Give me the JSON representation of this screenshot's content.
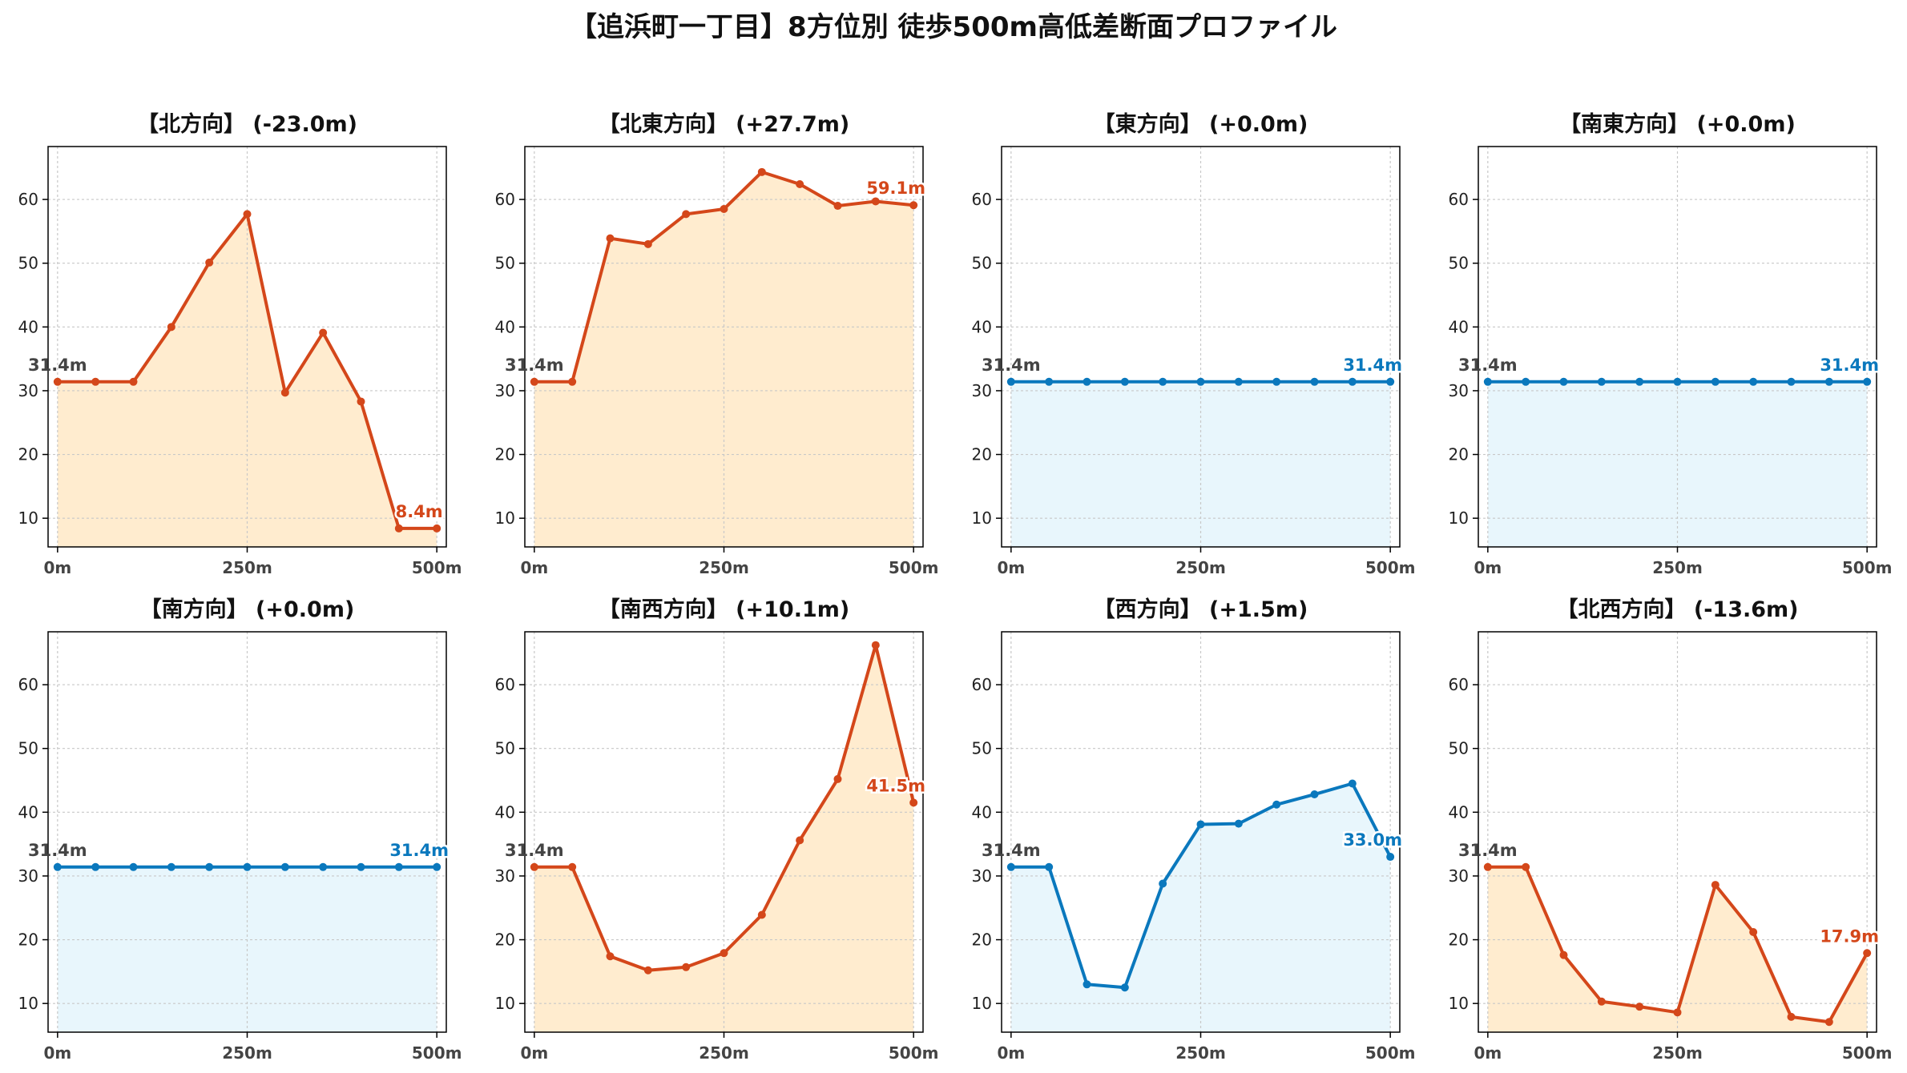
{
  "suptitle": "【追浜町一丁目】8方位別 徒歩500m高低差断面プロファイル",
  "colors": {
    "down": "#d4471a",
    "down_fill": "#ffeccf",
    "up": "#0a78bd",
    "up_fill": "#e8f6fc",
    "start_label": "#444444",
    "grid": "#c8c8c8",
    "axis": "#000000"
  },
  "chart_data": [
    {
      "type": "line",
      "title": "【北方向】 (-23.0m)",
      "trend": "down",
      "x": [
        0,
        50,
        100,
        150,
        200,
        250,
        300,
        350,
        400,
        450,
        500
      ],
      "y": [
        31.4,
        31.4,
        31.4,
        40.0,
        50.1,
        57.7,
        29.7,
        39.1,
        28.3,
        8.4,
        8.4
      ],
      "start_label": "31.4m",
      "end_label": "8.4m",
      "xticks": [
        "0m",
        "250m",
        "500m"
      ],
      "yticks": [
        10,
        20,
        30,
        40,
        50,
        60
      ],
      "ylim": [
        5.5,
        68.3
      ],
      "xlim": [
        -12.5,
        512.5
      ],
      "grid": true
    },
    {
      "type": "line",
      "title": "【北東方向】 (+27.7m)",
      "trend": "down",
      "x": [
        0,
        50,
        100,
        150,
        200,
        250,
        300,
        350,
        400,
        450,
        500
      ],
      "y": [
        31.4,
        31.4,
        53.9,
        53.0,
        57.7,
        58.5,
        64.3,
        62.4,
        59.0,
        59.7,
        59.1
      ],
      "start_label": "31.4m",
      "end_label": "59.1m",
      "xticks": [
        "0m",
        "250m",
        "500m"
      ],
      "yticks": [
        10,
        20,
        30,
        40,
        50,
        60
      ],
      "ylim": [
        5.5,
        68.3
      ],
      "xlim": [
        -12.5,
        512.5
      ],
      "grid": true
    },
    {
      "type": "line",
      "title": "【東方向】 (+0.0m)",
      "trend": "up",
      "x": [
        0,
        50,
        100,
        150,
        200,
        250,
        300,
        350,
        400,
        450,
        500
      ],
      "y": [
        31.4,
        31.4,
        31.4,
        31.4,
        31.4,
        31.4,
        31.4,
        31.4,
        31.4,
        31.4,
        31.4
      ],
      "start_label": "31.4m",
      "end_label": "31.4m",
      "xticks": [
        "0m",
        "250m",
        "500m"
      ],
      "yticks": [
        10,
        20,
        30,
        40,
        50,
        60
      ],
      "ylim": [
        5.5,
        68.3
      ],
      "xlim": [
        -12.5,
        512.5
      ],
      "grid": true
    },
    {
      "type": "line",
      "title": "【南東方向】 (+0.0m)",
      "trend": "up",
      "x": [
        0,
        50,
        100,
        150,
        200,
        250,
        300,
        350,
        400,
        450,
        500
      ],
      "y": [
        31.4,
        31.4,
        31.4,
        31.4,
        31.4,
        31.4,
        31.4,
        31.4,
        31.4,
        31.4,
        31.4
      ],
      "start_label": "31.4m",
      "end_label": "31.4m",
      "xticks": [
        "0m",
        "250m",
        "500m"
      ],
      "yticks": [
        10,
        20,
        30,
        40,
        50,
        60
      ],
      "ylim": [
        5.5,
        68.3
      ],
      "xlim": [
        -12.5,
        512.5
      ],
      "grid": true
    },
    {
      "type": "line",
      "title": "【南方向】 (+0.0m)",
      "trend": "up",
      "x": [
        0,
        50,
        100,
        150,
        200,
        250,
        300,
        350,
        400,
        450,
        500
      ],
      "y": [
        31.4,
        31.4,
        31.4,
        31.4,
        31.4,
        31.4,
        31.4,
        31.4,
        31.4,
        31.4,
        31.4
      ],
      "start_label": "31.4m",
      "end_label": "31.4m",
      "xticks": [
        "0m",
        "250m",
        "500m"
      ],
      "yticks": [
        10,
        20,
        30,
        40,
        50,
        60
      ],
      "ylim": [
        5.5,
        68.3
      ],
      "xlim": [
        -12.5,
        512.5
      ],
      "grid": true
    },
    {
      "type": "line",
      "title": "【南西方向】 (+10.1m)",
      "trend": "down",
      "x": [
        0,
        50,
        100,
        150,
        200,
        250,
        300,
        350,
        400,
        450,
        500
      ],
      "y": [
        31.4,
        31.4,
        17.4,
        15.2,
        15.7,
        17.9,
        23.9,
        35.6,
        45.2,
        66.2,
        41.5
      ],
      "start_label": "31.4m",
      "end_label": "41.5m",
      "xticks": [
        "0m",
        "250m",
        "500m"
      ],
      "yticks": [
        10,
        20,
        30,
        40,
        50,
        60
      ],
      "ylim": [
        5.5,
        68.3
      ],
      "xlim": [
        -12.5,
        512.5
      ],
      "grid": true
    },
    {
      "type": "line",
      "title": "【西方向】 (+1.5m)",
      "trend": "up",
      "x": [
        0,
        50,
        100,
        150,
        200,
        250,
        300,
        350,
        400,
        450,
        500
      ],
      "y": [
        31.4,
        31.4,
        13.0,
        12.5,
        28.8,
        38.1,
        38.2,
        41.2,
        42.8,
        44.5,
        33.0
      ],
      "start_label": "31.4m",
      "end_label": "33.0m",
      "xticks": [
        "0m",
        "250m",
        "500m"
      ],
      "yticks": [
        10,
        20,
        30,
        40,
        50,
        60
      ],
      "ylim": [
        5.5,
        68.3
      ],
      "xlim": [
        -12.5,
        512.5
      ],
      "grid": true
    },
    {
      "type": "line",
      "title": "【北西方向】 (-13.6m)",
      "trend": "down",
      "x": [
        0,
        50,
        100,
        150,
        200,
        250,
        300,
        350,
        400,
        450,
        500
      ],
      "y": [
        31.4,
        31.4,
        17.6,
        10.3,
        9.5,
        8.6,
        28.6,
        21.2,
        7.9,
        7.1,
        17.9
      ],
      "start_label": "31.4m",
      "end_label": "17.9m",
      "xticks": [
        "0m",
        "250m",
        "500m"
      ],
      "yticks": [
        10,
        20,
        30,
        40,
        50,
        60
      ],
      "ylim": [
        5.5,
        68.3
      ],
      "xlim": [
        -12.5,
        512.5
      ],
      "grid": true
    }
  ]
}
